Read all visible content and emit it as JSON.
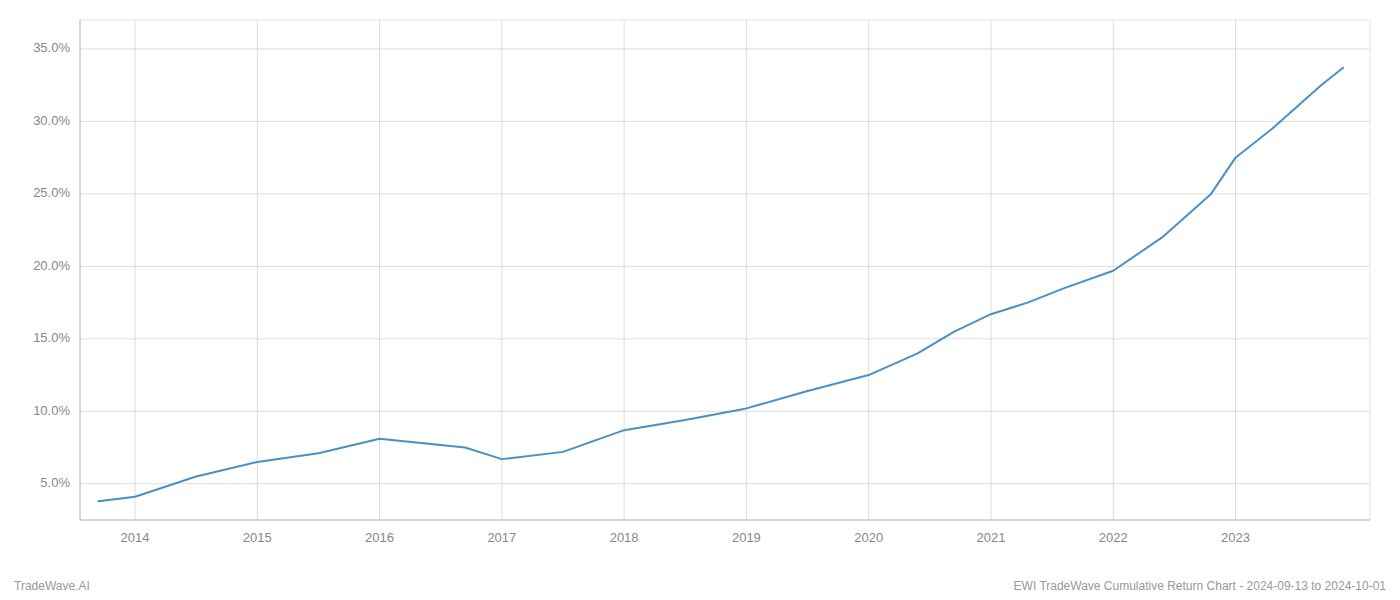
{
  "chart_data": {
    "type": "line",
    "x": [
      2013.7,
      2014.0,
      2014.5,
      2015.0,
      2015.5,
      2016.0,
      2016.7,
      2017.0,
      2017.5,
      2018.0,
      2018.5,
      2019.0,
      2019.5,
      2020.0,
      2020.4,
      2020.7,
      2021.0,
      2021.3,
      2021.6,
      2022.0,
      2022.4,
      2022.8,
      2023.0,
      2023.3,
      2023.7,
      2023.88
    ],
    "values": [
      3.8,
      4.1,
      5.5,
      6.5,
      7.1,
      8.1,
      7.5,
      6.7,
      7.2,
      8.7,
      9.4,
      10.2,
      11.4,
      12.5,
      14.0,
      15.5,
      16.7,
      17.5,
      18.5,
      19.7,
      22.0,
      25.0,
      27.5,
      29.5,
      32.5,
      33.7
    ],
    "color": "#4a90c4",
    "xlim": [
      2013.55,
      2024.1
    ],
    "xticks": [
      2014,
      2015,
      2016,
      2017,
      2018,
      2019,
      2020,
      2021,
      2022,
      2023
    ],
    "ylim": [
      2.5,
      37.0
    ],
    "yticks": [
      {
        "value": 5.0,
        "label": "5.0%"
      },
      {
        "value": 10.0,
        "label": "10.0%"
      },
      {
        "value": 15.0,
        "label": "15.0%"
      },
      {
        "value": 20.0,
        "label": "20.0%"
      },
      {
        "value": 25.0,
        "label": "25.0%"
      },
      {
        "value": 30.0,
        "label": "30.0%"
      },
      {
        "value": 35.0,
        "label": "35.0%"
      }
    ],
    "grid": true,
    "annotations": [
      "TradeWave.AI",
      "EWI TradeWave Cumulative Return Chart - 2024-09-13 to 2024-10-01"
    ]
  }
}
